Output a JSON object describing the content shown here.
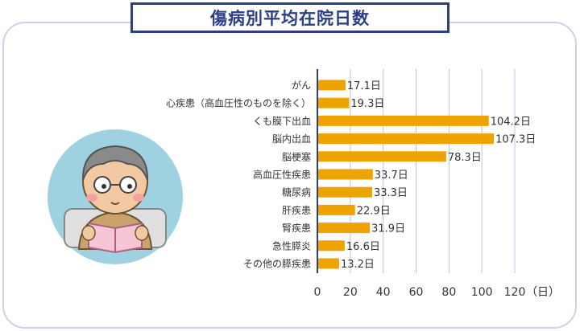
{
  "title": "傷病別平均在院日数",
  "colors": {
    "bar": "#efa300",
    "grid": "#b8c4e2",
    "axis": "#2d3f84",
    "title": "#2d3f84",
    "circle": "#9fd2e0"
  },
  "chart_data": {
    "type": "bar",
    "orientation": "horizontal",
    "title": "傷病別平均在院日数",
    "categories": [
      "がん",
      "心疾患（高血圧性のものを除く）",
      "くも膜下出血",
      "脳内出血",
      "脳梗塞",
      "高血圧性疾患",
      "糖尿病",
      "肝疾患",
      "腎疾患",
      "急性膵炎",
      "その他の膵疾患"
    ],
    "values": [
      17.1,
      19.3,
      104.2,
      107.3,
      78.3,
      33.7,
      33.3,
      22.9,
      31.9,
      16.6,
      13.2
    ],
    "value_labels": [
      "17.1日",
      "19.3日",
      "104.2日",
      "107.3日",
      "78.3日",
      "33.7日",
      "33.3日",
      "22.9日",
      "31.9日",
      "16.6日",
      "13.2日"
    ],
    "xticks": [
      0,
      20,
      40,
      60,
      80,
      100,
      120
    ],
    "xtick_labels": [
      "0",
      "20",
      "40",
      "60",
      "80",
      "100",
      "120"
    ],
    "x_unit": "（日）",
    "xlim": [
      0,
      130
    ],
    "grid": true
  }
}
